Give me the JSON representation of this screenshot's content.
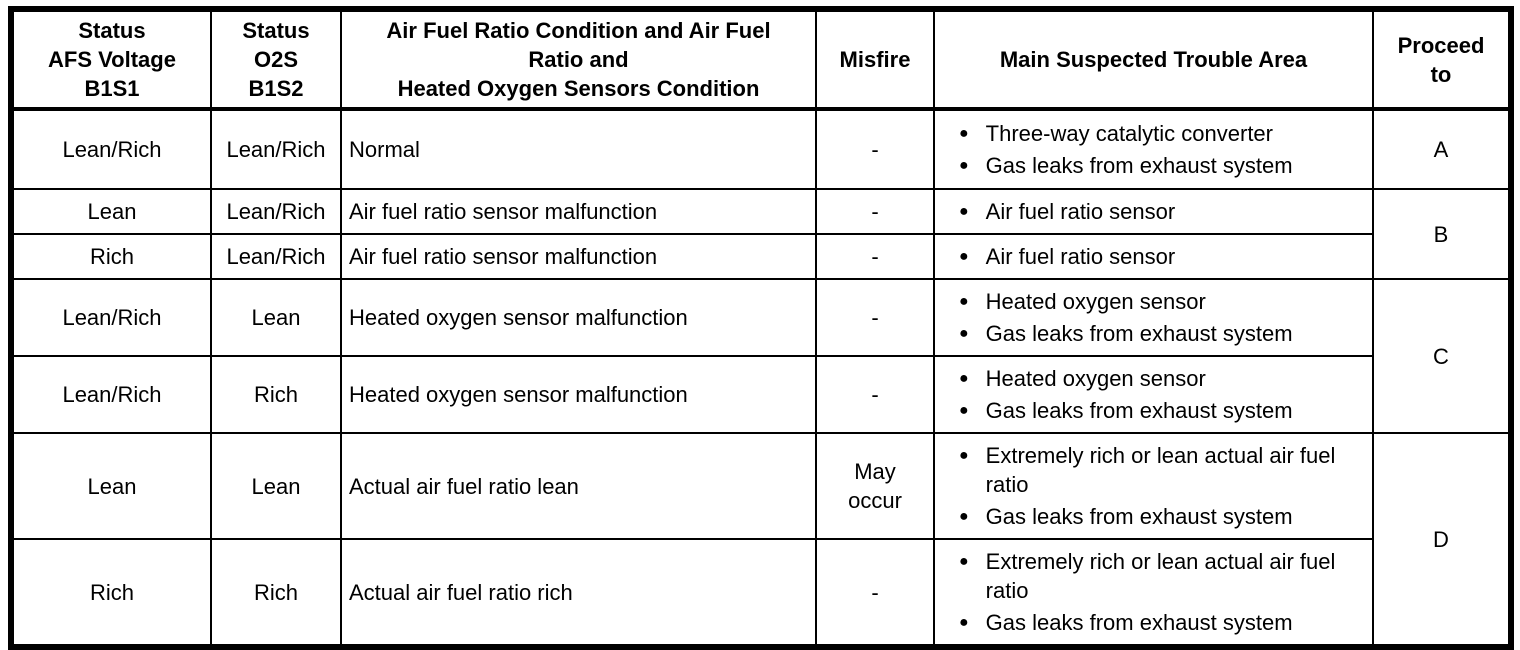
{
  "glyphs": {
    "bullet": "●"
  },
  "colors": {
    "border": "#000000",
    "background": "#ffffff",
    "text": "#000000"
  },
  "table": {
    "headers": {
      "afs": {
        "lines": [
          "Status",
          "AFS Voltage",
          "B1S1"
        ]
      },
      "o2s": {
        "lines": [
          "Status",
          "O2S",
          "B1S2"
        ]
      },
      "condition": {
        "lines": [
          "Air Fuel Ratio Condition and Air Fuel",
          "Ratio and",
          "Heated Oxygen Sensors Condition"
        ]
      },
      "misfire": {
        "lines": [
          "Misfire"
        ]
      },
      "trouble": {
        "lines": [
          "Main Suspected Trouble Area"
        ]
      },
      "proceed": {
        "lines": [
          "Proceed",
          "to"
        ]
      }
    },
    "rows": [
      {
        "afs": "Lean/Rich",
        "o2s": "Lean/Rich",
        "condition": "Normal",
        "misfire": "-",
        "trouble": [
          "Three-way catalytic converter",
          "Gas leaks from exhaust system"
        ],
        "proceed": "A"
      },
      {
        "afs": "Lean",
        "o2s": "Lean/Rich",
        "condition": "Air fuel ratio sensor malfunction",
        "misfire": "-",
        "trouble": [
          "Air fuel ratio sensor"
        ],
        "proceed": "B"
      },
      {
        "afs": "Rich",
        "o2s": "Lean/Rich",
        "condition": "Air fuel ratio sensor malfunction",
        "misfire": "-",
        "trouble": [
          "Air fuel ratio sensor"
        ]
      },
      {
        "afs": "Lean/Rich",
        "o2s": "Lean",
        "condition": "Heated oxygen sensor malfunction",
        "misfire": "-",
        "trouble": [
          "Heated oxygen sensor",
          "Gas leaks from exhaust system"
        ],
        "proceed": "C"
      },
      {
        "afs": "Lean/Rich",
        "o2s": "Rich",
        "condition": "Heated oxygen sensor malfunction",
        "misfire": "-",
        "trouble": [
          "Heated oxygen sensor",
          "Gas leaks from exhaust system"
        ]
      },
      {
        "afs": "Lean",
        "o2s": "Lean",
        "condition": "Actual air fuel ratio lean",
        "misfire": "May occur",
        "trouble": [
          "Extremely rich or lean actual air fuel ratio",
          "Gas leaks from exhaust system"
        ],
        "proceed": "D"
      },
      {
        "afs": "Rich",
        "o2s": "Rich",
        "condition": "Actual air fuel ratio rich",
        "misfire": "-",
        "trouble": [
          "Extremely rich or lean actual air fuel ratio",
          "Gas leaks from exhaust system"
        ]
      }
    ]
  }
}
